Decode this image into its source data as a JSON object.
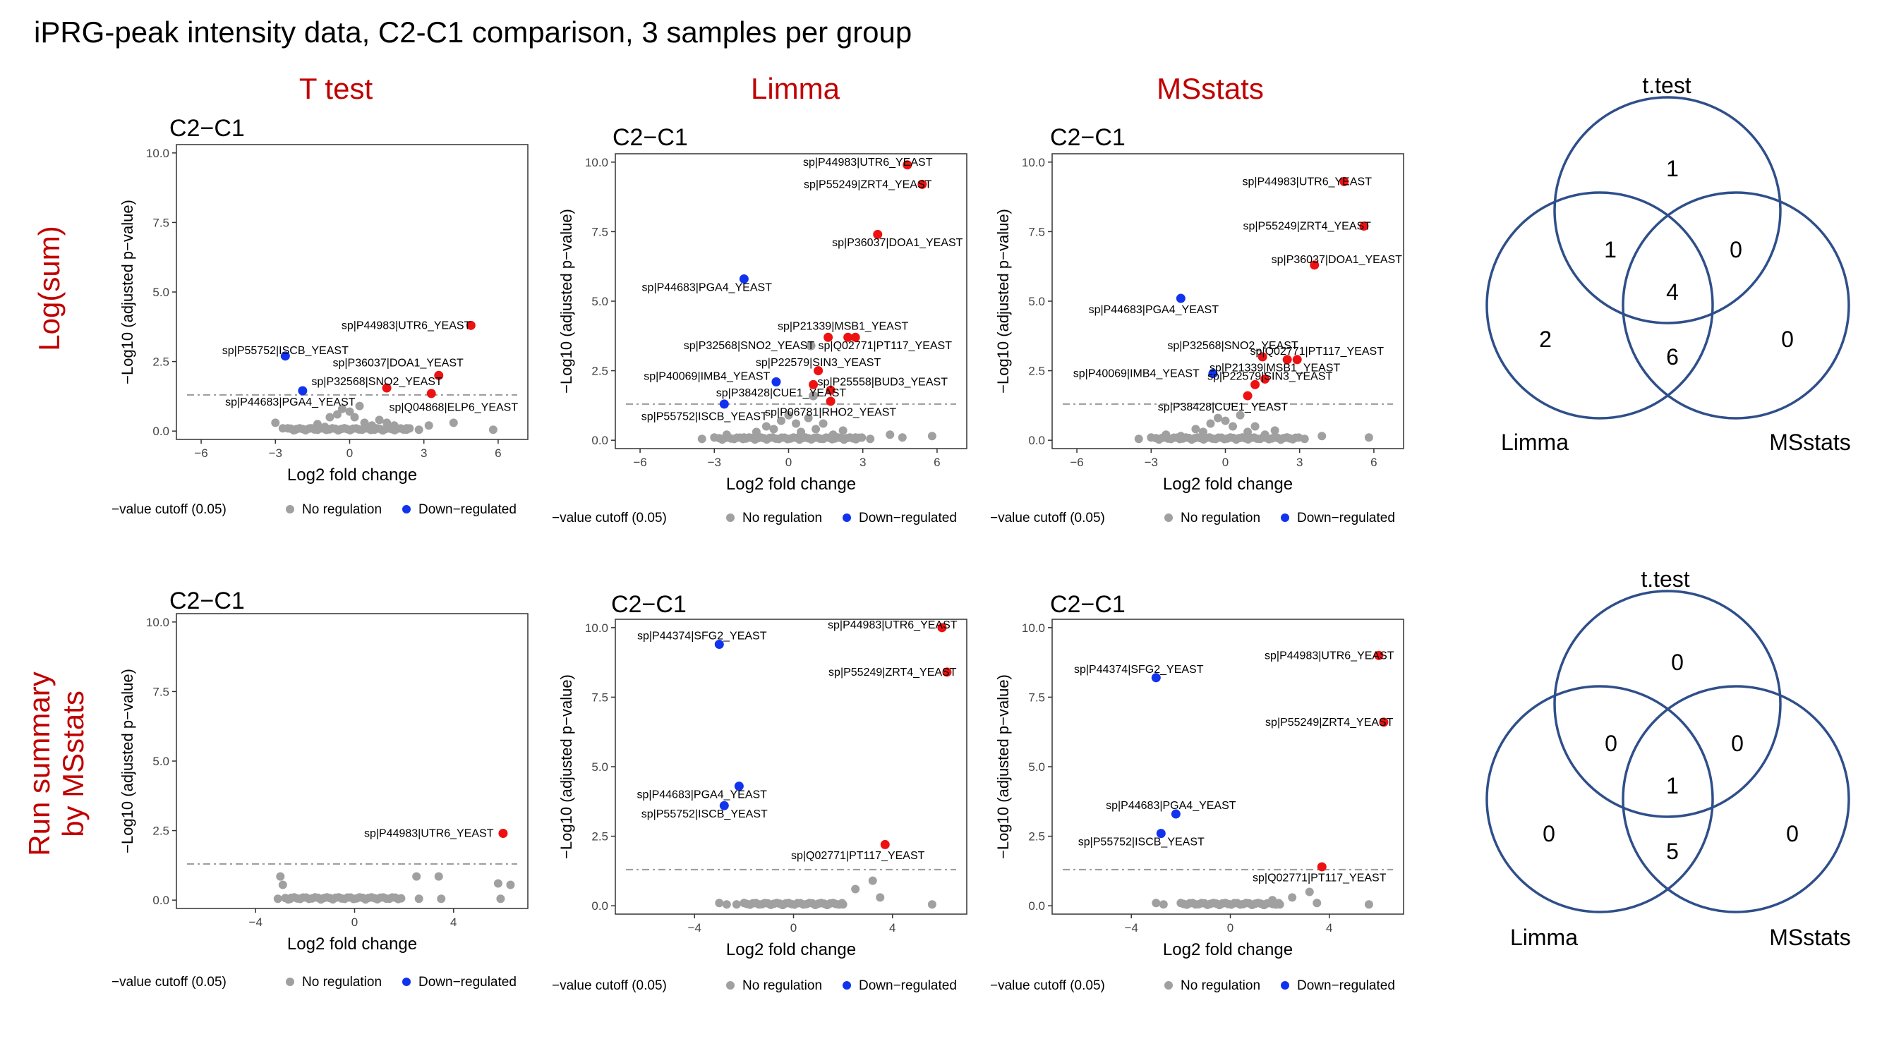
{
  "figure": {
    "title": "iPRG-peak intensity data, C2-C1 comparison, 3 samples per group",
    "column_titles": [
      "T test",
      "Limma",
      "MSstats"
    ],
    "row_labels": [
      [
        "Log(sum)"
      ],
      [
        "Run summary",
        "by MSstats"
      ]
    ]
  },
  "common": {
    "xlabel": "Log2 fold change",
    "ylabel": "−Log10 (adjusted p−value)",
    "legend_items": [
      "−value cutoff (0.05)",
      "No regulation",
      "Down−regulated"
    ],
    "colors": {
      "none": "#a0a0a0",
      "up": "#ee1111",
      "down": "#1133ee",
      "cutoff": "#999999",
      "venn": "#2f4f8a"
    }
  },
  "chart_data": [
    {
      "type": "scatter",
      "title": "C2−C1",
      "xlim": [
        -7,
        7.2
      ],
      "ylim": [
        -0.3,
        10.3
      ],
      "xticks": [
        "-6",
        "-3",
        "0",
        "3",
        "6"
      ],
      "yticks": [
        "0.0",
        "2.5",
        "5.0",
        "7.5",
        "10.0"
      ],
      "cutoff": 1.3,
      "labels": [
        "sp|P44983|UTR6_YEAST",
        "sp|P55752|ISCB_YEAST",
        "sp|P36037|DOA1_YEAST",
        "sp|P32568|SNO2_YEAST",
        "sp|P44683|PGA4_YEAST",
        "sp|Q04868|ELP6_YEAST"
      ],
      "points": [
        {
          "x": 4.9,
          "y": 3.8,
          "c": "up",
          "l": 0,
          "lx": 4.9,
          "ly": 3.8,
          "anchor": "end"
        },
        {
          "x": -2.6,
          "y": 2.7,
          "c": "down",
          "l": 1,
          "lx": -2.6,
          "ly": 2.9,
          "anchor": "middle"
        },
        {
          "x": 3.6,
          "y": 2.0,
          "c": "up",
          "l": 2,
          "lx": 4.6,
          "ly": 2.45,
          "anchor": "end"
        },
        {
          "x": 1.5,
          "y": 1.55,
          "c": "up",
          "l": 3,
          "lx": 1.1,
          "ly": 1.78,
          "anchor": "middle"
        },
        {
          "x": -1.9,
          "y": 1.45,
          "c": "down",
          "l": 4,
          "lx": -2.4,
          "ly": 1.05,
          "anchor": "middle"
        },
        {
          "x": 3.3,
          "y": 1.35,
          "c": "up",
          "l": 5,
          "lx": 4.2,
          "ly": 0.85,
          "anchor": "middle"
        }
      ],
      "grey": [
        [
          -3,
          0.3
        ],
        [
          -2.7,
          0.1
        ],
        [
          -2.2,
          0.05
        ],
        [
          -1.6,
          0.1
        ],
        [
          -1.3,
          0.25
        ],
        [
          -1,
          0.15
        ],
        [
          -0.8,
          0.5
        ],
        [
          -0.5,
          0.6
        ],
        [
          -0.3,
          0.8
        ],
        [
          0,
          0.7
        ],
        [
          0.2,
          0.5
        ],
        [
          0.4,
          0.9
        ],
        [
          0.6,
          0.3
        ],
        [
          0.9,
          0.2
        ],
        [
          1.2,
          0.4
        ],
        [
          1.5,
          0.3
        ],
        [
          1.8,
          0.2
        ],
        [
          2.3,
          0.1
        ],
        [
          2.8,
          0.05
        ],
        [
          3.2,
          0.2
        ],
        [
          4.2,
          0.3
        ],
        [
          5.8,
          0.05
        ],
        [
          1,
          0.05
        ],
        [
          -0.2,
          0.1
        ]
      ],
      "grey_band": [
        [
          -2.5,
          2.5
        ]
      ]
    },
    {
      "type": "scatter",
      "title": "C2−C1",
      "xlim": [
        -7,
        7.2
      ],
      "ylim": [
        -0.3,
        10.3
      ],
      "xticks": [
        "-6",
        "-3",
        "0",
        "3",
        "6"
      ],
      "yticks": [
        "0.0",
        "2.5",
        "5.0",
        "7.5",
        "10.0"
      ],
      "cutoff": 1.3,
      "labels": [
        "sp|P44983|UTR6_YEAST",
        "sp|P55249|ZRT4_YEAST",
        "sp|P36037|DOA1_YEAST",
        "sp|P44683|PGA4_YEAST",
        "sp|P21339|MSB1_YEAST",
        "sp|P32568|SNO2_YEAST",
        "sp|Q02771|PT117_YEAST",
        "sp|P22579|SIN3_YEAST",
        "sp|P40069|IMB4_YEAST",
        "sp|P25558|BUD3_YEAST",
        "sp|P38428|CUE1_YEAST",
        "sp|P55752|ISCB_YEAST",
        "sp|P06781|RHO2_YEAST"
      ],
      "points": [
        {
          "x": 4.8,
          "y": 9.9,
          "c": "up",
          "l": 0,
          "lx": 3.2,
          "ly": 10.0,
          "anchor": "middle"
        },
        {
          "x": 5.4,
          "y": 9.2,
          "c": "up",
          "l": 1,
          "lx": 3.2,
          "ly": 9.2,
          "anchor": "middle"
        },
        {
          "x": 3.6,
          "y": 7.4,
          "c": "up",
          "l": 2,
          "lx": 4.4,
          "ly": 7.1,
          "anchor": "middle"
        },
        {
          "x": -1.8,
          "y": 5.8,
          "c": "down",
          "l": 3,
          "lx": -3.3,
          "ly": 5.5,
          "anchor": "middle"
        },
        {
          "x": 1.6,
          "y": 3.7,
          "c": "up",
          "l": 4,
          "lx": 2.2,
          "ly": 4.1,
          "anchor": "middle"
        },
        {
          "x": 2.4,
          "y": 3.7,
          "c": "up",
          "l": 6,
          "lx": 3.9,
          "ly": 3.4,
          "anchor": "middle"
        },
        {
          "x": 2.7,
          "y": 3.7,
          "c": "up",
          "l": -1
        },
        {
          "x": 0.9,
          "y": 3.4,
          "c": "none",
          "l": 5,
          "lx": -1.6,
          "ly": 3.4,
          "anchor": "middle"
        },
        {
          "x": 1.2,
          "y": 2.5,
          "c": "up",
          "l": 7,
          "lx": 1.2,
          "ly": 2.8,
          "anchor": "middle"
        },
        {
          "x": -0.5,
          "y": 2.1,
          "c": "down",
          "l": 8,
          "lx": -3.3,
          "ly": 2.3,
          "anchor": "middle"
        },
        {
          "x": 1.0,
          "y": 2.0,
          "c": "up",
          "l": -1
        },
        {
          "x": 1.7,
          "y": 1.8,
          "c": "up",
          "l": 9,
          "lx": 3.8,
          "ly": 2.1,
          "anchor": "middle"
        },
        {
          "x": 1.0,
          "y": 1.6,
          "c": "none",
          "l": 10,
          "lx": -0.3,
          "ly": 1.7,
          "anchor": "middle"
        },
        {
          "x": -2.6,
          "y": 1.3,
          "c": "down",
          "l": 11,
          "lx": -3.4,
          "ly": 0.85,
          "anchor": "middle"
        },
        {
          "x": 1.7,
          "y": 1.4,
          "c": "up",
          "l": 12,
          "lx": 1.7,
          "ly": 1.0,
          "anchor": "middle"
        }
      ],
      "grey": [
        [
          -3,
          0.1
        ],
        [
          -2.5,
          0.2
        ],
        [
          -1.8,
          0.1
        ],
        [
          -1.3,
          0.3
        ],
        [
          -0.9,
          0.5
        ],
        [
          -0.6,
          0.4
        ],
        [
          -0.3,
          0.7
        ],
        [
          0,
          0.9
        ],
        [
          0.3,
          0.6
        ],
        [
          0.5,
          0.3
        ],
        [
          0.8,
          0.8
        ],
        [
          1.1,
          0.4
        ],
        [
          1.4,
          0.6
        ],
        [
          1.8,
          0.2
        ],
        [
          2.2,
          0.35
        ],
        [
          2.7,
          0.1
        ],
        [
          3.3,
          0.05
        ],
        [
          4.1,
          0.2
        ],
        [
          4.6,
          0.1
        ],
        [
          5.8,
          0.15
        ],
        [
          -3.5,
          0.05
        ]
      ],
      "grey_band": [
        [
          -2.8,
          3.0
        ]
      ]
    },
    {
      "type": "scatter",
      "title": "C2−C1",
      "xlim": [
        -7,
        7.2
      ],
      "ylim": [
        -0.3,
        10.3
      ],
      "xticks": [
        "-6",
        "-3",
        "0",
        "3",
        "6"
      ],
      "yticks": [
        "0.0",
        "2.5",
        "5.0",
        "7.5",
        "10.0"
      ],
      "cutoff": 1.3,
      "labels": [
        "sp|P44983|UTR6_YEAST",
        "sp|P55249|ZRT4_YEAST",
        "sp|P36037|DOA1_YEAST",
        "sp|P44683|PGA4_YEAST",
        "sp|P32568|SNO2_YEAST",
        "sp|Q02771|PT117_YEAST",
        "sp|P40069|IMB4_YEAST",
        "sp|P21339|MSB1_YEAST",
        "sp|P22579|SIN3_YEAST",
        "sp|P38428|CUE1_YEAST"
      ],
      "points": [
        {
          "x": 4.8,
          "y": 9.3,
          "c": "up",
          "l": 0,
          "lx": 3.3,
          "ly": 9.3,
          "anchor": "middle"
        },
        {
          "x": 5.6,
          "y": 7.7,
          "c": "up",
          "l": 1,
          "lx": 3.3,
          "ly": 7.7,
          "anchor": "middle"
        },
        {
          "x": 3.6,
          "y": 6.3,
          "c": "up",
          "l": 2,
          "lx": 4.5,
          "ly": 6.5,
          "anchor": "middle"
        },
        {
          "x": -1.8,
          "y": 5.1,
          "c": "down",
          "l": 3,
          "lx": -2.9,
          "ly": 4.7,
          "anchor": "middle"
        },
        {
          "x": 1.5,
          "y": 3.0,
          "c": "up",
          "l": 4,
          "lx": 0.3,
          "ly": 3.4,
          "anchor": "middle"
        },
        {
          "x": 2.5,
          "y": 2.9,
          "c": "up",
          "l": 5,
          "lx": 3.7,
          "ly": 3.2,
          "anchor": "middle"
        },
        {
          "x": 2.9,
          "y": 2.9,
          "c": "up",
          "l": -1
        },
        {
          "x": -0.5,
          "y": 2.4,
          "c": "down",
          "l": 6,
          "lx": -3.6,
          "ly": 2.4,
          "anchor": "middle"
        },
        {
          "x": 1.6,
          "y": 2.2,
          "c": "up",
          "l": 7,
          "lx": 2.0,
          "ly": 2.6,
          "anchor": "middle"
        },
        {
          "x": 1.2,
          "y": 2.0,
          "c": "up",
          "l": 8,
          "lx": 1.8,
          "ly": 2.3,
          "anchor": "middle"
        },
        {
          "x": 0.9,
          "y": 1.6,
          "c": "up",
          "l": 9,
          "lx": -0.1,
          "ly": 1.2,
          "anchor": "middle"
        }
      ],
      "grey": [
        [
          -3,
          0.1
        ],
        [
          -2.4,
          0.2
        ],
        [
          -1.8,
          0.15
        ],
        [
          -1.2,
          0.4
        ],
        [
          -0.9,
          0.3
        ],
        [
          -0.6,
          0.6
        ],
        [
          -0.3,
          0.8
        ],
        [
          0,
          0.7
        ],
        [
          0.3,
          0.5
        ],
        [
          0.6,
          0.9
        ],
        [
          0.9,
          0.3
        ],
        [
          1.2,
          0.5
        ],
        [
          1.6,
          0.2
        ],
        [
          2.0,
          0.35
        ],
        [
          2.5,
          0.1
        ],
        [
          3.2,
          0.05
        ],
        [
          3.9,
          0.15
        ],
        [
          5.8,
          0.1
        ],
        [
          -3.5,
          0.05
        ]
      ],
      "grey_band": [
        [
          -2.8,
          3.0
        ]
      ]
    },
    {
      "type": "scatter",
      "title": "C2−C1",
      "xlim": [
        -7.2,
        7
      ],
      "ylim": [
        -0.3,
        10.3
      ],
      "xticks": [
        "-4",
        "0",
        "4"
      ],
      "xtick_values": [
        -4,
        0,
        4
      ],
      "yticks": [
        "0.0",
        "2.5",
        "5.0",
        "7.5",
        "10.0"
      ],
      "cutoff": 1.3,
      "labels": [
        "sp|P44983|UTR6_YEAST"
      ],
      "points": [
        {
          "x": 6.0,
          "y": 2.4,
          "c": "up",
          "l": 0,
          "lx": 3.0,
          "ly": 2.4,
          "anchor": "middle"
        }
      ],
      "grey": [
        [
          -3,
          0.85
        ],
        [
          -2.9,
          0.55
        ],
        [
          -3.1,
          0.05
        ],
        [
          -2.6,
          0.05
        ],
        [
          -2.2,
          0.05
        ],
        [
          2.5,
          0.85
        ],
        [
          3.4,
          0.85
        ],
        [
          2.6,
          0.05
        ],
        [
          3.5,
          0.05
        ],
        [
          5.8,
          0.6
        ],
        [
          6.3,
          0.55
        ],
        [
          5.9,
          0.05
        ]
      ],
      "grey_band": [
        [
          -2.8,
          2.0
        ]
      ]
    },
    {
      "type": "scatter",
      "title": "C2−C1",
      "xlim": [
        -7.2,
        7
      ],
      "ylim": [
        -0.3,
        10.3
      ],
      "xticks": [
        "-4",
        "0",
        "4"
      ],
      "xtick_values": [
        -4,
        0,
        4
      ],
      "yticks": [
        "0.0",
        "2.5",
        "5.0",
        "7.5",
        "10.0"
      ],
      "cutoff": 1.3,
      "labels": [
        "sp|P44983|UTR6_YEAST",
        "sp|P44374|SFG2_YEAST",
        "sp|P55249|ZRT4_YEAST",
        "sp|P44683|PGA4_YEAST",
        "sp|P55752|ISCB_YEAST",
        "sp|Q02771|PT117_YEAST"
      ],
      "points": [
        {
          "x": 6.0,
          "y": 10.0,
          "c": "up",
          "l": 0,
          "lx": 4.0,
          "ly": 10.1,
          "anchor": "middle"
        },
        {
          "x": -3.0,
          "y": 9.4,
          "c": "down",
          "l": 1,
          "lx": -3.7,
          "ly": 9.7,
          "anchor": "middle"
        },
        {
          "x": 6.2,
          "y": 8.4,
          "c": "up",
          "l": 2,
          "lx": 4.0,
          "ly": 8.4,
          "anchor": "middle"
        },
        {
          "x": -2.2,
          "y": 4.3,
          "c": "down",
          "l": 3,
          "lx": -3.7,
          "ly": 4.0,
          "anchor": "middle"
        },
        {
          "x": -2.8,
          "y": 3.6,
          "c": "down",
          "l": 4,
          "lx": -3.6,
          "ly": 3.3,
          "anchor": "middle"
        },
        {
          "x": 3.7,
          "y": 2.2,
          "c": "up",
          "l": 5,
          "lx": 2.6,
          "ly": 1.8,
          "anchor": "middle"
        }
      ],
      "grey": [
        [
          -3,
          0.1
        ],
        [
          -2.7,
          0.05
        ],
        [
          2.5,
          0.6
        ],
        [
          3.2,
          0.9
        ],
        [
          3.5,
          0.3
        ],
        [
          5.6,
          0.05
        ],
        [
          2.0,
          0.05
        ],
        [
          -2.3,
          0.05
        ]
      ],
      "grey_band": [
        [
          -2.0,
          2.0
        ]
      ]
    },
    {
      "type": "scatter",
      "title": "C2−C1",
      "xlim": [
        -7.2,
        7
      ],
      "ylim": [
        -0.3,
        10.3
      ],
      "xticks": [
        "-4",
        "0",
        "4"
      ],
      "xtick_values": [
        -4,
        0,
        4
      ],
      "yticks": [
        "0.0",
        "2.5",
        "5.0",
        "7.5",
        "10.0"
      ],
      "cutoff": 1.3,
      "labels": [
        "sp|P44983|UTR6_YEAST",
        "sp|P44374|SFG2_YEAST",
        "sp|P55249|ZRT4_YEAST",
        "sp|P44683|PGA4_YEAST",
        "sp|P55752|ISCB_YEAST",
        "sp|Q02771|PT117_YEAST"
      ],
      "points": [
        {
          "x": 6.0,
          "y": 9.0,
          "c": "up",
          "l": 0,
          "lx": 4.0,
          "ly": 9.0,
          "anchor": "middle"
        },
        {
          "x": -3.0,
          "y": 8.2,
          "c": "down",
          "l": 1,
          "lx": -3.7,
          "ly": 8.5,
          "anchor": "middle"
        },
        {
          "x": 6.2,
          "y": 6.6,
          "c": "up",
          "l": 2,
          "lx": 4.0,
          "ly": 6.6,
          "anchor": "middle"
        },
        {
          "x": -2.2,
          "y": 3.3,
          "c": "down",
          "l": 3,
          "lx": -2.4,
          "ly": 3.6,
          "anchor": "middle"
        },
        {
          "x": -2.8,
          "y": 2.6,
          "c": "down",
          "l": 4,
          "lx": -3.6,
          "ly": 2.3,
          "anchor": "middle"
        },
        {
          "x": 3.7,
          "y": 1.4,
          "c": "up",
          "l": 5,
          "lx": 3.6,
          "ly": 1.0,
          "anchor": "middle"
        }
      ],
      "grey": [
        [
          -3,
          0.1
        ],
        [
          -2.7,
          0.05
        ],
        [
          2.5,
          0.3
        ],
        [
          3.2,
          0.5
        ],
        [
          3.5,
          0.1
        ],
        [
          5.6,
          0.05
        ],
        [
          2.0,
          0.05
        ],
        [
          1.7,
          0.2
        ]
      ],
      "grey_band": [
        [
          -2.0,
          2.0
        ]
      ]
    }
  ],
  "venns": [
    {
      "labels": [
        "t.test",
        "Limma",
        "MSstats"
      ],
      "counts": {
        "t_only": "1",
        "tl": "1",
        "tm": "0",
        "all": "4",
        "l_only": "2",
        "lm": "6",
        "m_only": "0"
      }
    },
    {
      "labels": [
        "t.test",
        "Limma",
        "MSstats"
      ],
      "counts": {
        "t_only": "0",
        "tl": "0",
        "tm": "0",
        "all": "1",
        "l_only": "0",
        "lm": "5",
        "m_only": "0"
      }
    }
  ]
}
